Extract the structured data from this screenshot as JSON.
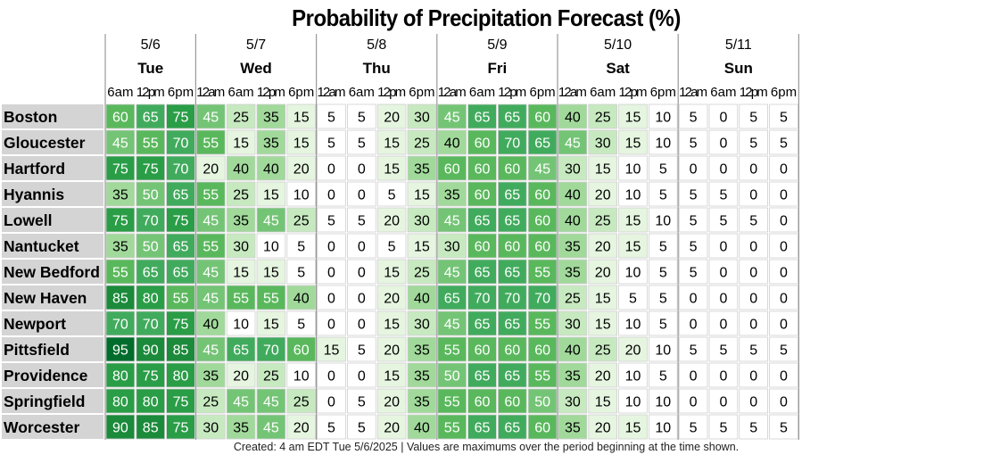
{
  "title": "Probability of Precipitation Forecast (%)",
  "footer": "Created: 4 am EDT Tue 5/6/2025  |  Values are maximums over the period beginning at the time shown.",
  "colors": {
    "scale": [
      {
        "min": 0,
        "bg": "#ffffff",
        "fg": "#000000"
      },
      {
        "min": 15,
        "bg": "#e5f5e0",
        "fg": "#000000"
      },
      {
        "min": 25,
        "bg": "#c7e9c0",
        "fg": "#000000"
      },
      {
        "min": 35,
        "bg": "#a1d99b",
        "fg": "#000000"
      },
      {
        "min": 45,
        "bg": "#74c476",
        "fg": "#ffffff"
      },
      {
        "min": 55,
        "bg": "#5ab85c",
        "fg": "#ffffff"
      },
      {
        "min": 65,
        "bg": "#41ab5d",
        "fg": "#ffffff"
      },
      {
        "min": 75,
        "bg": "#2a9d47",
        "fg": "#ffffff"
      },
      {
        "min": 85,
        "bg": "#1b8a3a",
        "fg": "#ffffff"
      },
      {
        "min": 95,
        "bg": "#006d2c",
        "fg": "#ffffff"
      }
    ],
    "row_label_bg": "#d4d4d4",
    "grid": "#9a9a9a"
  },
  "chart_data": {
    "type": "table",
    "days": [
      {
        "date": "5/6",
        "name": "Tue",
        "times": [
          "6am",
          "12pm",
          "6pm"
        ]
      },
      {
        "date": "5/7",
        "name": "Wed",
        "times": [
          "12am",
          "6am",
          "12pm",
          "6pm"
        ]
      },
      {
        "date": "5/8",
        "name": "Thu",
        "times": [
          "12am",
          "6am",
          "12pm",
          "6pm"
        ]
      },
      {
        "date": "5/9",
        "name": "Fri",
        "times": [
          "12am",
          "6am",
          "12pm",
          "6pm"
        ]
      },
      {
        "date": "5/10",
        "name": "Sat",
        "times": [
          "12am",
          "6am",
          "12pm",
          "6pm"
        ]
      },
      {
        "date": "5/11",
        "name": "Sun",
        "times": [
          "12am",
          "6am",
          "12pm",
          "6pm"
        ]
      }
    ],
    "rows": [
      {
        "city": "Boston",
        "values": [
          60,
          65,
          75,
          45,
          25,
          35,
          15,
          5,
          5,
          20,
          30,
          45,
          65,
          65,
          60,
          40,
          25,
          15,
          10,
          5,
          0,
          5,
          5
        ]
      },
      {
        "city": "Gloucester",
        "values": [
          45,
          55,
          70,
          55,
          15,
          35,
          15,
          5,
          5,
          15,
          25,
          40,
          60,
          70,
          65,
          45,
          30,
          15,
          10,
          5,
          0,
          5,
          5
        ]
      },
      {
        "city": "Hartford",
        "values": [
          75,
          75,
          70,
          20,
          40,
          40,
          20,
          0,
          0,
          15,
          35,
          60,
          60,
          60,
          45,
          30,
          15,
          10,
          5,
          0,
          0,
          0,
          0
        ]
      },
      {
        "city": "Hyannis",
        "values": [
          35,
          50,
          65,
          55,
          25,
          15,
          10,
          0,
          0,
          5,
          15,
          35,
          60,
          65,
          60,
          40,
          20,
          10,
          5,
          5,
          5,
          0,
          0
        ]
      },
      {
        "city": "Lowell",
        "values": [
          75,
          70,
          75,
          45,
          35,
          45,
          25,
          5,
          5,
          20,
          30,
          45,
          65,
          65,
          60,
          40,
          25,
          15,
          10,
          5,
          5,
          5,
          0
        ]
      },
      {
        "city": "Nantucket",
        "values": [
          35,
          50,
          65,
          55,
          30,
          10,
          5,
          0,
          0,
          5,
          15,
          30,
          60,
          60,
          60,
          35,
          20,
          15,
          5,
          5,
          0,
          0,
          0
        ]
      },
      {
        "city": "New Bedford",
        "values": [
          55,
          65,
          65,
          45,
          15,
          15,
          5,
          0,
          0,
          15,
          25,
          45,
          65,
          65,
          55,
          35,
          20,
          10,
          5,
          5,
          0,
          0,
          0
        ]
      },
      {
        "city": "New Haven",
        "values": [
          85,
          80,
          55,
          45,
          55,
          55,
          40,
          0,
          0,
          20,
          40,
          65,
          70,
          70,
          70,
          25,
          15,
          5,
          5,
          0,
          0,
          0,
          0
        ]
      },
      {
        "city": "Newport",
        "values": [
          70,
          70,
          75,
          40,
          10,
          15,
          5,
          0,
          0,
          15,
          30,
          45,
          65,
          65,
          55,
          30,
          15,
          10,
          5,
          0,
          0,
          0,
          0
        ]
      },
      {
        "city": "Pittsfield",
        "values": [
          95,
          90,
          85,
          45,
          65,
          70,
          60,
          15,
          5,
          20,
          35,
          55,
          60,
          60,
          60,
          40,
          25,
          20,
          10,
          5,
          5,
          5,
          5
        ]
      },
      {
        "city": "Providence",
        "values": [
          80,
          75,
          80,
          35,
          20,
          25,
          10,
          0,
          0,
          15,
          35,
          50,
          65,
          65,
          55,
          35,
          20,
          10,
          5,
          0,
          0,
          0,
          0
        ]
      },
      {
        "city": "Springfield",
        "values": [
          80,
          80,
          75,
          25,
          45,
          45,
          25,
          0,
          5,
          20,
          35,
          55,
          60,
          60,
          50,
          30,
          15,
          10,
          10,
          0,
          0,
          0,
          0
        ]
      },
      {
        "city": "Worcester",
        "values": [
          90,
          85,
          75,
          30,
          35,
          45,
          20,
          5,
          5,
          20,
          40,
          55,
          65,
          65,
          60,
          35,
          20,
          15,
          10,
          5,
          5,
          5,
          5
        ]
      }
    ]
  }
}
